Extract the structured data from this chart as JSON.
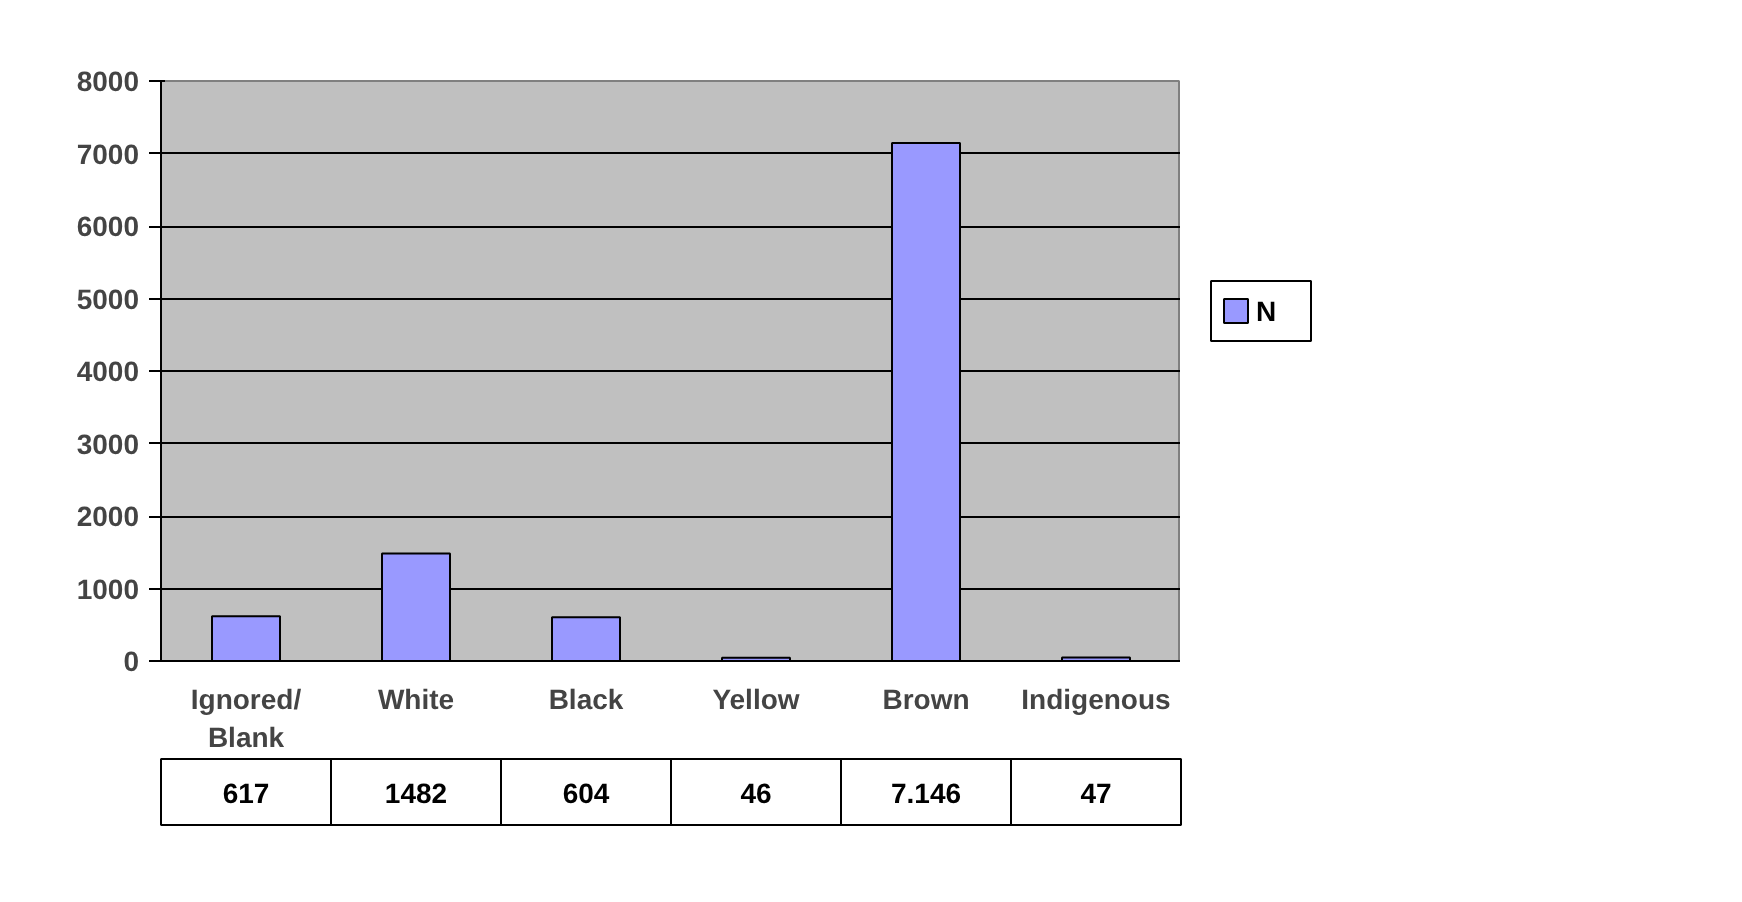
{
  "chart_data": {
    "type": "bar",
    "categories": [
      "Ignored/ Blank",
      "White",
      "Black",
      "Yellow",
      "Brown",
      "Indigenous"
    ],
    "series": [
      {
        "name": "N",
        "color": "#9999ff",
        "values": [
          617,
          1482,
          604,
          46,
          7146,
          47
        ],
        "value_labels": [
          "617",
          "1482",
          "604",
          "46",
          "7.146",
          "47"
        ]
      }
    ],
    "ylim": [
      0,
      8000
    ],
    "yticks": [
      0,
      1000,
      2000,
      3000,
      4000,
      5000,
      6000,
      7000,
      8000
    ],
    "grid": "y",
    "legend": "right"
  }
}
